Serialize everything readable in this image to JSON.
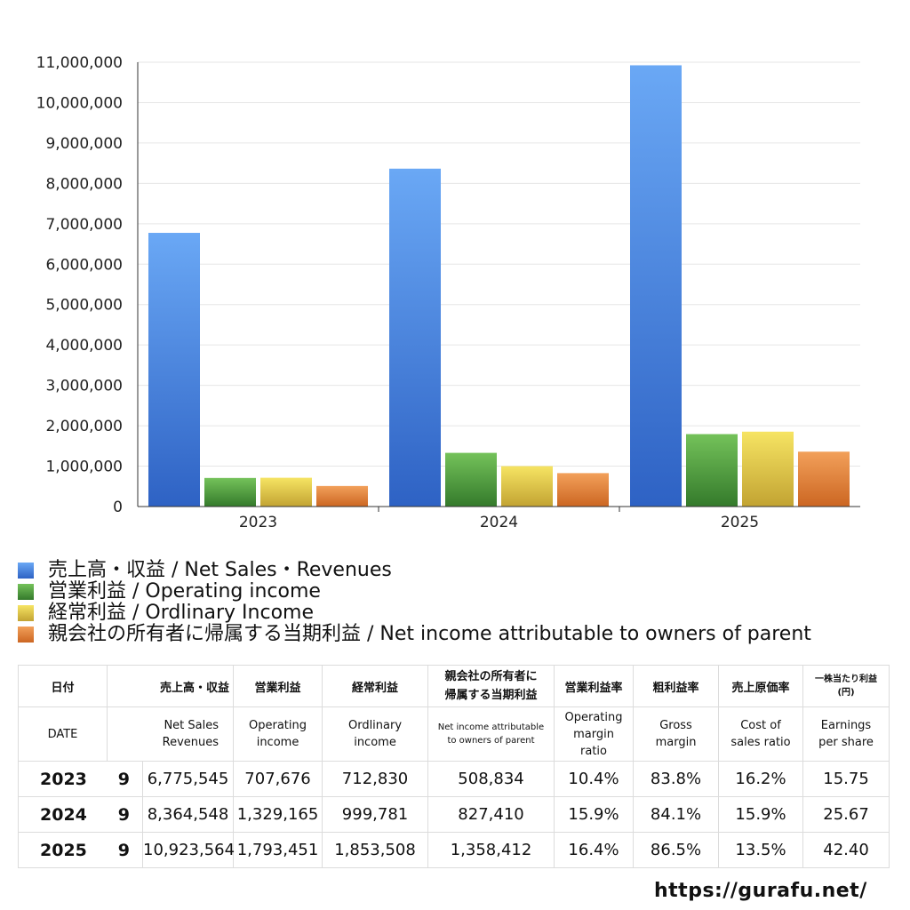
{
  "chart_data": {
    "type": "bar",
    "categories": [
      "2023",
      "2024",
      "2025"
    ],
    "series": [
      {
        "name": "売上高・収益 / Net Sales・Revenues",
        "values": [
          6775545,
          8364548,
          10923564
        ],
        "color": "#3f7fdc"
      },
      {
        "name": "営業利益 / Operating income",
        "values": [
          707676,
          1329165,
          1793451
        ],
        "color": "#4a9d3c"
      },
      {
        "name": "経常利益 / Ordlinary Income",
        "values": [
          712830,
          999781,
          1853508
        ],
        "color": "#e0c33c"
      },
      {
        "name": "親会社の所有者に帰属する当期利益 / Net income attributable to owners of parent",
        "values": [
          508834,
          827410,
          1358412
        ],
        "color": "#e07d30"
      }
    ],
    "ylim": [
      0,
      11000000
    ],
    "yticks": [
      "0",
      "1,000,000",
      "2,000,000",
      "3,000,000",
      "4,000,000",
      "5,000,000",
      "6,000,000",
      "7,000,000",
      "8,000,000",
      "9,000,000",
      "10,000,000",
      "11,000,000"
    ],
    "grid": true,
    "legend_position": "bottom"
  },
  "table": {
    "headers_jp": [
      "日付",
      "売上高・収益",
      "営業利益",
      "経常利益",
      "親会社の所有者に\n帰属する当期利益",
      "営業利益率",
      "粗利益率",
      "売上原価率",
      "一株当たり利益\n(円)"
    ],
    "headers_en": [
      "DATE",
      "Net Sales\nRevenues",
      "Operating\nincome",
      "Ordlinary\nincome",
      "Net income attributable\nto owners of parent",
      "Operating\nmargin\nratio",
      "Gross\nmargin",
      "Cost of\nsales ratio",
      "Earnings\nper share"
    ],
    "rows": [
      {
        "year": "2023",
        "month": "9",
        "cells": [
          "6,775,545",
          "707,676",
          "712,830",
          "508,834",
          "10.4%",
          "83.8%",
          "16.2%",
          "15.75"
        ]
      },
      {
        "year": "2024",
        "month": "9",
        "cells": [
          "8,364,548",
          "1,329,165",
          "999,781",
          "827,410",
          "15.9%",
          "84.1%",
          "15.9%",
          "25.67"
        ]
      },
      {
        "year": "2025",
        "month": "9",
        "cells": [
          "10,923,564",
          "1,793,451",
          "1,853,508",
          "1,358,412",
          "16.4%",
          "86.5%",
          "13.5%",
          "42.40"
        ]
      }
    ]
  },
  "footer": {
    "url": "https://gurafu.net/"
  }
}
